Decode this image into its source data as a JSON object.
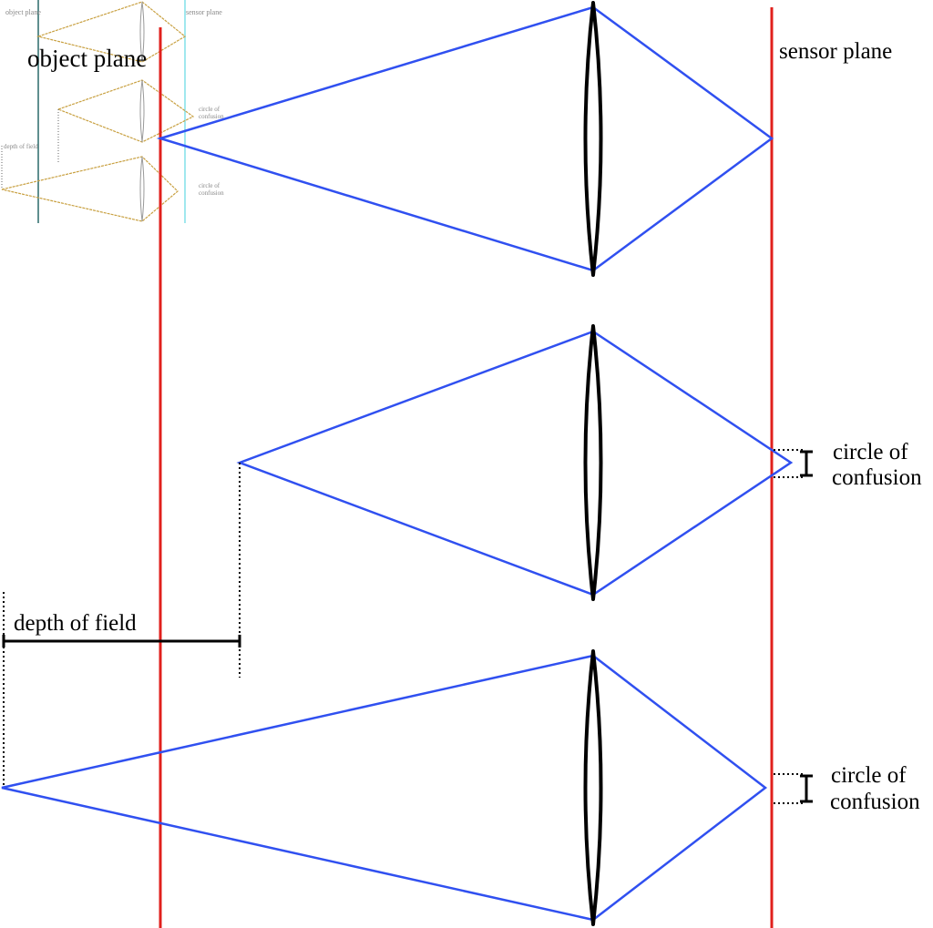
{
  "labels": {
    "object_plane": "object plane",
    "sensor_plane": "sensor plane",
    "depth_of_field": "depth of field",
    "circle_of_confusion_1": "circle of",
    "circle_of_confusion_1b": "confusion",
    "circle_of_confusion_2": "circle of",
    "circle_of_confusion_2b": "confusion"
  },
  "thumbnail": {
    "object_plane": "object plane",
    "sensor_plane": "sensor plane",
    "coc_1": "circle of",
    "coc_1b": "confusion",
    "coc_2": "circle of",
    "coc_2b": "confusion",
    "depth_of_field": "depth of field"
  },
  "colors": {
    "plane": "#e0201c",
    "ray": "#3050f0",
    "lens": "#000000",
    "thumb_ray": "#c8a040",
    "thumb_object_plane": "#2a6a6a",
    "thumb_sensor_plane": "#80e0e8"
  }
}
